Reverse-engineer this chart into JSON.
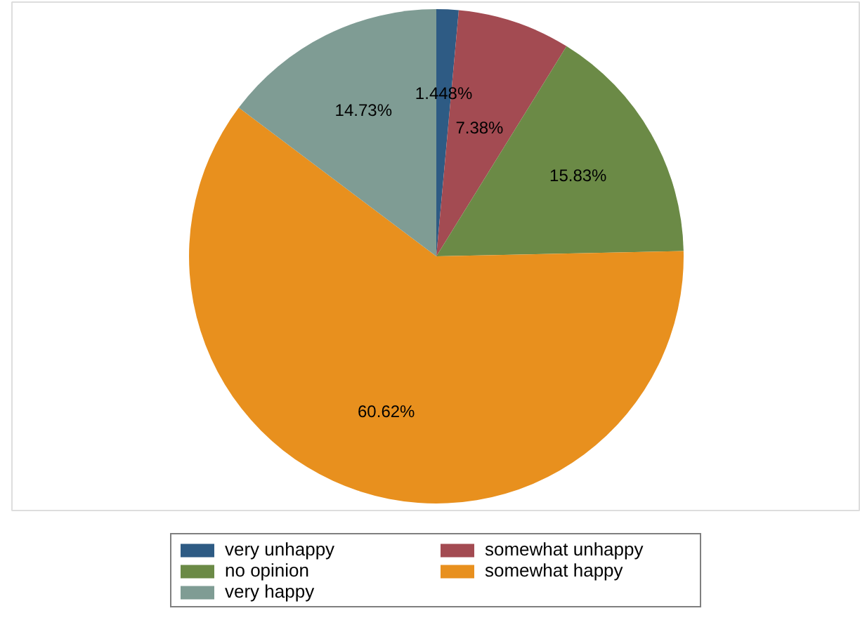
{
  "chart_data": {
    "type": "pie",
    "categories": [
      "very unhappy",
      "somewhat unhappy",
      "no opinion",
      "somewhat happy",
      "very happy"
    ],
    "values": [
      1.448,
      7.38,
      15.83,
      60.62,
      14.73
    ],
    "colors": [
      "#2e5b84",
      "#a34b52",
      "#6b8a46",
      "#e8901e",
      "#7f9c94"
    ],
    "value_labels": [
      "1.448%",
      "7.38%",
      "15.83%",
      "60.62%",
      "14.73%"
    ],
    "legend": "bottom"
  }
}
